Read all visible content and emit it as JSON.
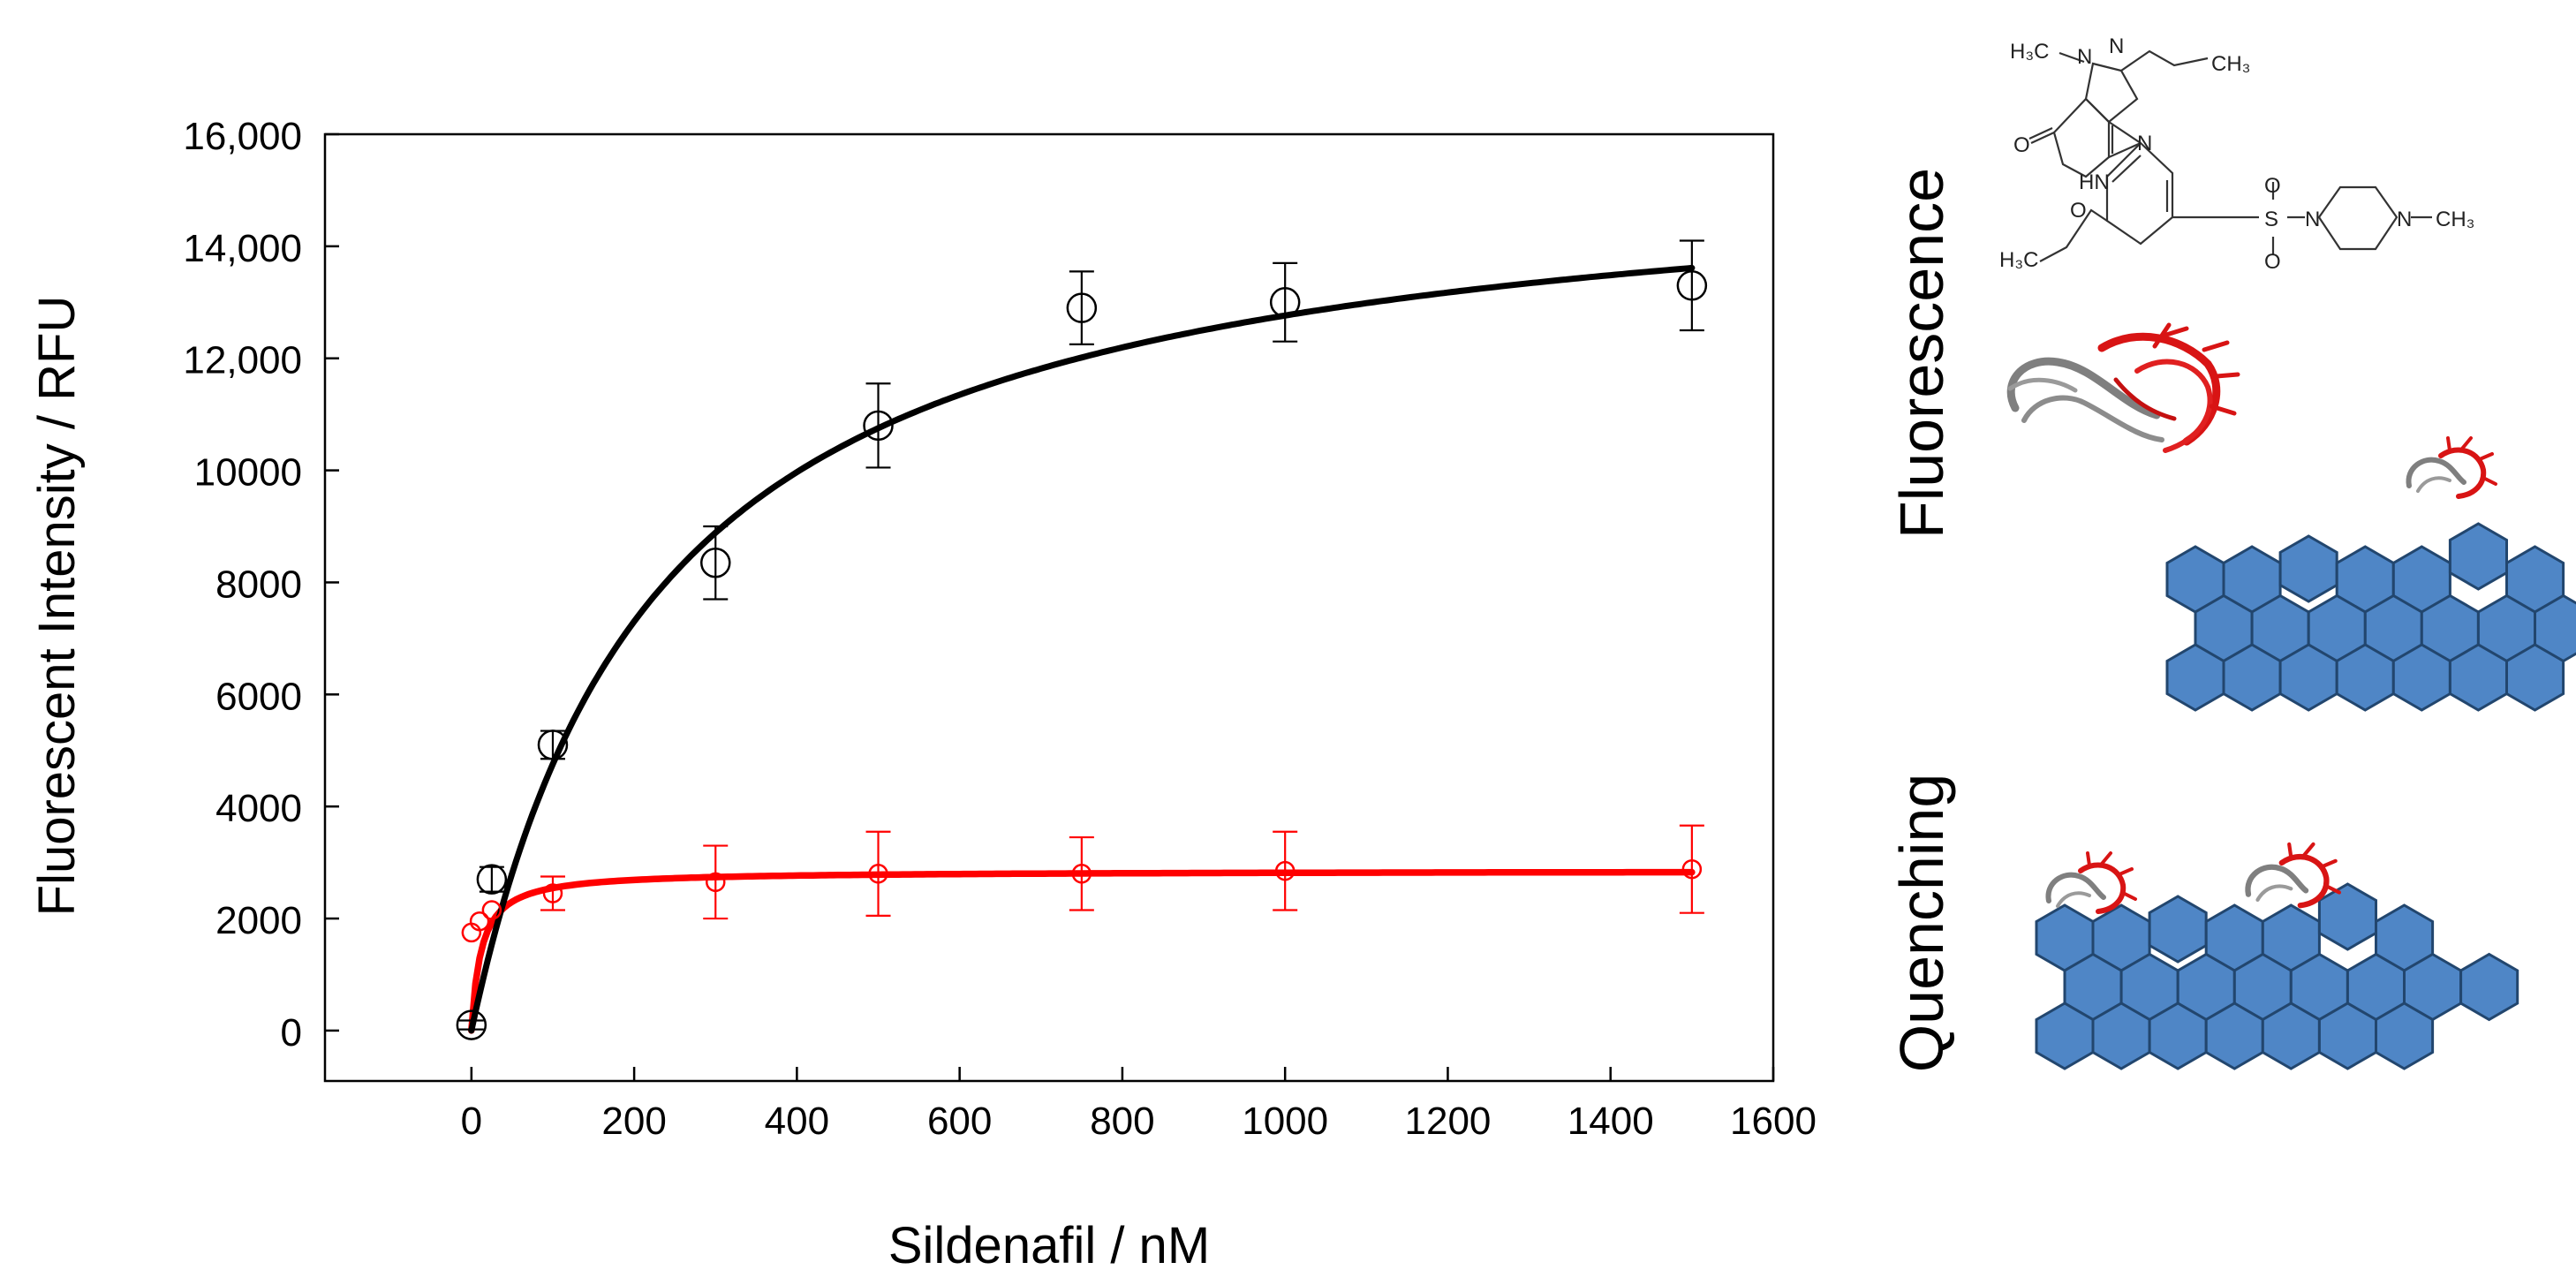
{
  "colors": {
    "black_series": "#000000",
    "red_series": "#ff0000",
    "hexagon_fill": "#4f86c6",
    "hexagon_stroke": "#22466e",
    "aptamer_red": "#d81414",
    "aptamer_gray": "#7f7f7f"
  },
  "chart_data": {
    "type": "scatter",
    "title": "",
    "xlabel": "Sildenafil / nM",
    "ylabel": "Fluorescent Intensity / RFU",
    "xlim": [
      -180,
      1600
    ],
    "ylim": [
      -900,
      16000
    ],
    "x_ticks": [
      0,
      200,
      400,
      600,
      800,
      1000,
      1200,
      1400,
      1600
    ],
    "x_tick_labels": [
      "0",
      "200",
      "400",
      "600",
      "800",
      "1000",
      "1200",
      "1400",
      "1600"
    ],
    "y_ticks": [
      0,
      2000,
      4000,
      6000,
      8000,
      10000,
      12000,
      14000,
      16000
    ],
    "y_tick_labels": [
      "0",
      "2000",
      "4000",
      "6000",
      "8000",
      "10000",
      "12,000",
      "14,000",
      "16,000"
    ],
    "grid": false,
    "legend": "none",
    "series": [
      {
        "name": "Fluorescence",
        "color": "#000000",
        "x": [
          0,
          25,
          100,
          300,
          500,
          750,
          1000,
          1500
        ],
        "y": [
          100,
          2700,
          5100,
          8350,
          10800,
          12900,
          13000,
          13300
        ],
        "error": [
          80,
          220,
          250,
          650,
          750,
          650,
          700,
          800
        ],
        "fit": {
          "model": "hyperbolic",
          "bmax": 15700,
          "kd": 230
        }
      },
      {
        "name": "Quenching",
        "color": "#ff0000",
        "x": [
          0,
          10,
          25,
          100,
          300,
          500,
          750,
          1000,
          1500
        ],
        "y": [
          1750,
          1950,
          2150,
          2450,
          2650,
          2800,
          2800,
          2850,
          2880
        ],
        "error": [
          0,
          0,
          0,
          300,
          650,
          750,
          650,
          700,
          780
        ],
        "fit": {
          "model": "hyperbolic",
          "bmax": 2850,
          "kd": 12
        }
      }
    ]
  },
  "figure": {
    "label_fluorescence": "Fluorescence",
    "label_quenching": "Quenching",
    "molecule": {
      "name": "sildenafil",
      "h3c_top": "H₃C",
      "n1": "N",
      "n2": "N",
      "ch3_top": "CH₃",
      "o_carbonyl": "O",
      "hn": "HN",
      "n3": "N",
      "s": "S",
      "o_up": "O",
      "o_down": "O",
      "n_pip1": "N",
      "n_pip2": "N",
      "ch3_pip": "CH₃",
      "o_ether": "O",
      "h3c_ethyl": "H₃C"
    }
  }
}
